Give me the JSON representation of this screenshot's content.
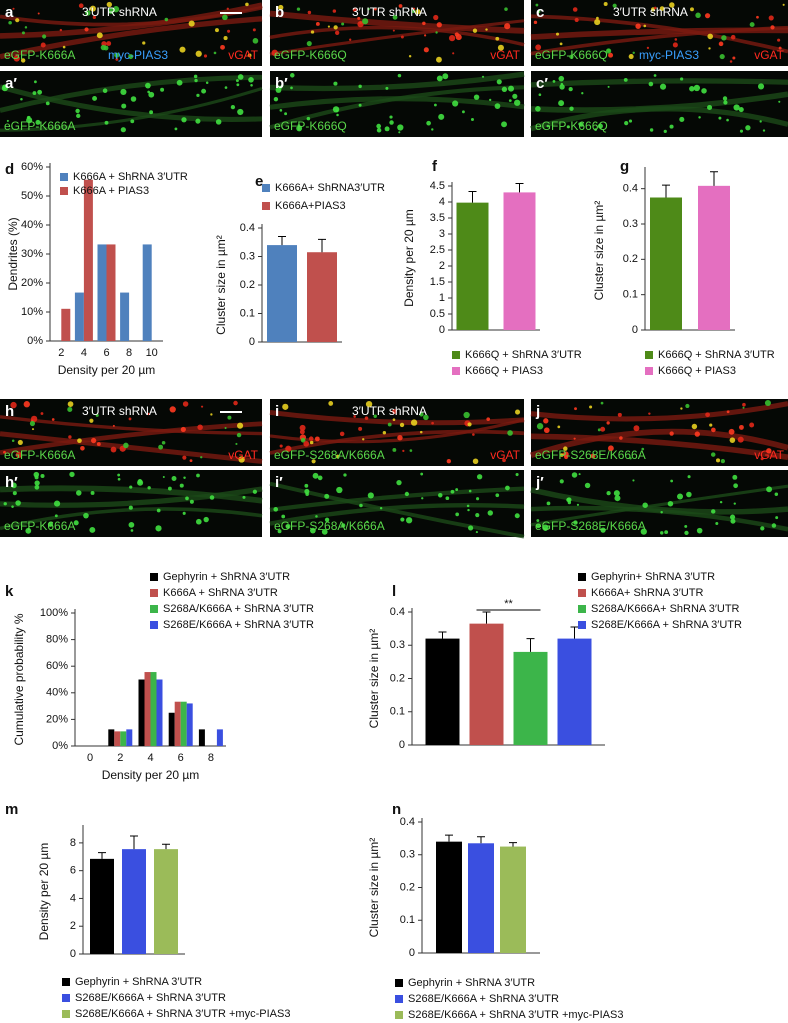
{
  "image_panels": [
    {
      "label": "a",
      "title": "3′UTR shRNA",
      "left": "eGFP-K666A",
      "middle": "myc-PIAS3",
      "right": "vGAT"
    },
    {
      "label": "b",
      "title": "3′UTR shRNA",
      "left": "eGFP-K666Q",
      "right": "vGAT"
    },
    {
      "label": "c",
      "title": "3′UTR shRNA",
      "left": "eGFP-K666Q",
      "middle": "myc-PIAS3",
      "right": "vGAT"
    },
    {
      "label": "a′",
      "left": "eGFP-K666A"
    },
    {
      "label": "b′",
      "left": "eGFP-K666Q"
    },
    {
      "label": "c′",
      "left": "eGFP-K666Q"
    },
    {
      "label": "h",
      "title": "3′UTR shRNA",
      "left": "eGFP-K666A",
      "right": "vGAT"
    },
    {
      "label": "i",
      "title": "3′UTR shRNA",
      "left": "eGFP-S268A/K666A",
      "right": "vGAT"
    },
    {
      "label": "j",
      "left": "eGFP-S268E/K666A",
      "right": "vGAT"
    },
    {
      "label": "h′",
      "left": "eGFP-K666A"
    },
    {
      "label": "i′",
      "left": "eGFP-S268A/K666A"
    },
    {
      "label": "j′",
      "left": "eGFP-S268E/K666A"
    }
  ],
  "chart_data": [
    {
      "type": "bar",
      "panel": "d",
      "ylabel": "Dendrites (%)",
      "xlabel": "Density per 20 µm",
      "categories": [
        "2",
        "4",
        "6",
        "8",
        "10"
      ],
      "series": [
        {
          "name": "K666A + ShRNA 3′UTR",
          "color": "#4f81bd",
          "values": [
            0,
            16.7,
            33.3,
            16.7,
            33.3
          ]
        },
        {
          "name": "K666A + PIAS3",
          "color": "#c0504d",
          "values": [
            11.1,
            55.6,
            33.3,
            0,
            0
          ]
        }
      ],
      "ylim": [
        0,
        60
      ],
      "yticks": [
        {
          "value": 0,
          "label": "0%"
        },
        {
          "value": 10,
          "label": "10%"
        },
        {
          "value": 20,
          "label": "20%"
        },
        {
          "value": 30,
          "label": "30%"
        },
        {
          "value": 40,
          "label": "40%"
        },
        {
          "value": 50,
          "label": "50%"
        },
        {
          "value": 60,
          "label": "60%"
        }
      ]
    },
    {
      "type": "bar",
      "panel": "e",
      "ylabel": "Cluster size in µm²",
      "series": [
        {
          "name": "K666A+ ShRNA3′UTR",
          "color": "#4f81bd",
          "values": [
            0.34
          ],
          "errors": [
            0.03
          ]
        },
        {
          "name": "K666A+PIAS3",
          "color": "#c0504d",
          "values": [
            0.315
          ],
          "errors": [
            0.045
          ]
        }
      ],
      "ylim": [
        0,
        0.4
      ],
      "yticks": [
        0,
        0.1,
        0.2,
        0.3,
        0.4
      ]
    },
    {
      "type": "bar",
      "panel": "f",
      "ylabel": "Density per 20 µm",
      "series": [
        {
          "name": "K666Q + ShRNA 3′UTR",
          "color": "#4e8a18",
          "values": [
            3.98
          ],
          "errors": [
            0.35
          ]
        },
        {
          "name": "K666Q + PIAS3",
          "color": "#e46fc0",
          "values": [
            4.3
          ],
          "errors": [
            0.28
          ]
        }
      ],
      "ylim": [
        0,
        4.5
      ],
      "yticks": [
        0,
        0.5,
        1,
        1.5,
        2,
        2.5,
        3,
        3.5,
        4,
        4.5
      ]
    },
    {
      "type": "bar",
      "panel": "g",
      "ylabel": "Cluster size in µm²",
      "series": [
        {
          "name": "K666Q + ShRNA 3′UTR",
          "color": "#4e8a18",
          "values": [
            0.375
          ],
          "errors": [
            0.035
          ]
        },
        {
          "name": "K666Q + PIAS3",
          "color": "#e46fc0",
          "values": [
            0.408
          ],
          "errors": [
            0.04
          ]
        }
      ],
      "ylim": [
        0,
        0.45
      ],
      "yticks": [
        0,
        0.1,
        0.2,
        0.3,
        0.4
      ]
    },
    {
      "type": "bar",
      "panel": "k",
      "ylabel": "Cumulative probability %",
      "xlabel": "Density per 20 µm",
      "categories": [
        "0",
        "2",
        "4",
        "6",
        "8"
      ],
      "series": [
        {
          "name": "Gephyrin + ShRNA 3′UTR",
          "color": "#000000",
          "values": [
            0,
            12.5,
            50,
            25,
            12.5
          ]
        },
        {
          "name": "K666A + ShRNA 3′UTR",
          "color": "#c0504d",
          "values": [
            0,
            11,
            55.6,
            33.3,
            0
          ]
        },
        {
          "name": "S268A/K666A + ShRNA 3′UTR",
          "color": "#3cb54a",
          "values": [
            0,
            11,
            55.6,
            33.3,
            0
          ]
        },
        {
          "name": "S268E/K666A + ShRNA 3′UTR",
          "color": "#3a4fe0",
          "values": [
            0,
            12.5,
            50,
            32,
            12.5
          ]
        }
      ],
      "ylim": [
        0,
        100
      ],
      "yticks": [
        {
          "value": 0,
          "label": "0%"
        },
        {
          "value": 20,
          "label": "20%"
        },
        {
          "value": 40,
          "label": "40%"
        },
        {
          "value": 60,
          "label": "60%"
        },
        {
          "value": 80,
          "label": "80%"
        },
        {
          "value": 100,
          "label": "100%"
        }
      ]
    },
    {
      "type": "bar",
      "panel": "l",
      "ylabel": "Cluster size in µm²",
      "annotation": "**",
      "series": [
        {
          "name": "Gephyrin+ ShRNA 3′UTR",
          "color": "#000000",
          "values": [
            0.32
          ],
          "errors": [
            0.02
          ]
        },
        {
          "name": "K666A+ ShRNA 3′UTR",
          "color": "#c0504d",
          "values": [
            0.365
          ],
          "errors": [
            0.035
          ]
        },
        {
          "name": "S268A/K666A+ ShRNA 3′UTR",
          "color": "#3cb54a",
          "values": [
            0.28
          ],
          "errors": [
            0.04
          ]
        },
        {
          "name": "S268E/K666A + ShRNA 3′UTR",
          "color": "#3a4fe0",
          "values": [
            0.32
          ],
          "errors": [
            0.035
          ]
        }
      ],
      "ylim": [
        0,
        0.4
      ],
      "yticks": [
        0,
        0.1,
        0.2,
        0.3,
        0.4
      ]
    },
    {
      "type": "bar",
      "panel": "m",
      "ylabel": "Density per 20 µm",
      "series": [
        {
          "name": "Gephyrin + ShRNA 3′UTR",
          "color": "#000000",
          "values": [
            6.85
          ],
          "errors": [
            0.45
          ]
        },
        {
          "name": "S268E/K666A + ShRNA 3′UTR",
          "color": "#3a4fe0",
          "values": [
            7.55
          ],
          "errors": [
            0.95
          ]
        },
        {
          "name": "S268E/K666A + ShRNA 3′UTR +myc-PIAS3",
          "color": "#9bbb59",
          "values": [
            7.55
          ],
          "errors": [
            0.35
          ]
        }
      ],
      "ylim": [
        0,
        9
      ],
      "yticks": [
        0,
        2,
        4,
        6,
        8
      ]
    },
    {
      "type": "bar",
      "panel": "n",
      "ylabel": "Cluster size in µm²",
      "series": [
        {
          "name": "Gephyrin + ShRNA 3′UTR",
          "color": "#000000",
          "values": [
            0.34
          ],
          "errors": [
            0.02
          ]
        },
        {
          "name": "S268E/K666A + ShRNA 3′UTR",
          "color": "#3a4fe0",
          "values": [
            0.335
          ],
          "errors": [
            0.02
          ]
        },
        {
          "name": "S268E/K666A + ShRNA 3′UTR +myc-PIAS3",
          "color": "#9bbb59",
          "values": [
            0.325
          ],
          "errors": [
            0.012
          ]
        }
      ],
      "ylim": [
        0,
        0.4
      ],
      "yticks": [
        0,
        0.1,
        0.2,
        0.3,
        0.4
      ]
    }
  ]
}
